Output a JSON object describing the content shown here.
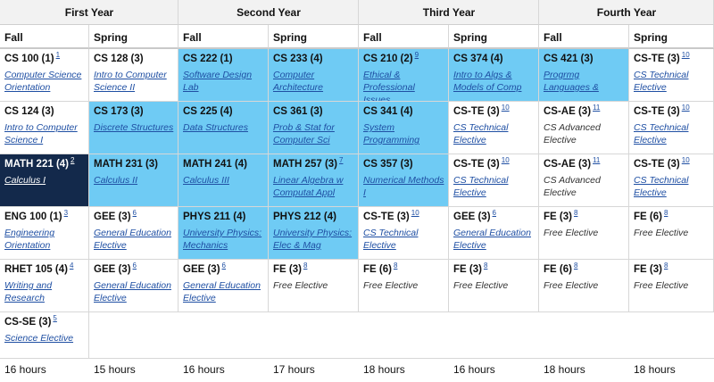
{
  "years": [
    "First Year",
    "Second Year",
    "Third Year",
    "Fourth Year"
  ],
  "terms": [
    "Fall",
    "Spring",
    "Fall",
    "Spring",
    "Fall",
    "Spring",
    "Fall",
    "Spring"
  ],
  "colors": {
    "highlight": "#6fcbf4",
    "selected": "#13294b",
    "link": "#1f4fa3"
  },
  "rows": [
    [
      {
        "code": "CS 100 (1)",
        "fn": "1",
        "title": "Computer Science Orientation",
        "link": true,
        "style": ""
      },
      {
        "code": "CS 128 (3)",
        "fn": "",
        "title": "Intro to Computer Science II",
        "link": true,
        "style": ""
      },
      {
        "code": "CS 222 (1)",
        "fn": "",
        "title": "Software Design Lab",
        "link": true,
        "style": "blue"
      },
      {
        "code": "CS 233 (4)",
        "fn": "",
        "title": "Computer Architecture",
        "link": true,
        "style": "blue"
      },
      {
        "code": "CS 210 (2)",
        "fn": "9",
        "title": "Ethical & Professional Issues",
        "link": true,
        "style": "blue"
      },
      {
        "code": "CS 374 (4)",
        "fn": "",
        "title": "Intro to Algs & Models of Comp",
        "link": true,
        "style": "blue"
      },
      {
        "code": "CS 421 (3)",
        "fn": "",
        "title": "Progrmg Languages &",
        "link": true,
        "style": "blue"
      },
      {
        "code": "CS-TE (3)",
        "fn": "10",
        "title": "CS Technical Elective",
        "link": true,
        "style": ""
      }
    ],
    [
      {
        "code": "CS 124 (3)",
        "fn": "",
        "title": "Intro to Computer Science I",
        "link": true,
        "style": ""
      },
      {
        "code": "CS 173 (3)",
        "fn": "",
        "title": "Discrete Structures",
        "link": true,
        "style": "blue"
      },
      {
        "code": "CS 225 (4)",
        "fn": "",
        "title": "Data Structures",
        "link": true,
        "style": "blue"
      },
      {
        "code": "CS 361 (3)",
        "fn": "",
        "title": "Prob & Stat for Computer Sci",
        "link": true,
        "style": "blue"
      },
      {
        "code": "CS 341 (4)",
        "fn": "",
        "title": "System Programming",
        "link": true,
        "style": "blue"
      },
      {
        "code": "CS-TE (3)",
        "fn": "10",
        "title": "CS Technical Elective",
        "link": true,
        "style": ""
      },
      {
        "code": "CS-AE (3)",
        "fn": "11",
        "title": "CS Advanced Elective",
        "link": false,
        "style": ""
      },
      {
        "code": "CS-TE (3)",
        "fn": "10",
        "title": "CS Technical Elective",
        "link": true,
        "style": ""
      }
    ],
    [
      {
        "code": "MATH 221 (4)",
        "fn": "2",
        "title": "Calculus I",
        "link": true,
        "style": "dark"
      },
      {
        "code": "MATH 231 (3)",
        "fn": "",
        "title": "Calculus II",
        "link": true,
        "style": "blue"
      },
      {
        "code": "MATH 241 (4)",
        "fn": "",
        "title": "Calculus III",
        "link": true,
        "style": "blue"
      },
      {
        "code": "MATH 257 (3)",
        "fn": "7",
        "title": "Linear Algebra w Computat Appl",
        "link": true,
        "style": "blue"
      },
      {
        "code": "CS 357 (3)",
        "fn": "",
        "title": "Numerical Methods I",
        "link": true,
        "style": "blue"
      },
      {
        "code": "CS-TE (3)",
        "fn": "10",
        "title": "CS Technical Elective",
        "link": true,
        "style": ""
      },
      {
        "code": "CS-AE (3)",
        "fn": "11",
        "title": "CS Advanced Elective",
        "link": false,
        "style": ""
      },
      {
        "code": "CS-TE (3)",
        "fn": "10",
        "title": "CS Technical Elective",
        "link": true,
        "style": ""
      }
    ],
    [
      {
        "code": "ENG 100 (1)",
        "fn": "3",
        "title": "Engineering Orientation",
        "link": true,
        "style": ""
      },
      {
        "code": "GEE (3)",
        "fn": "6",
        "title": "General Education Elective",
        "link": true,
        "style": ""
      },
      {
        "code": "PHYS 211 (4)",
        "fn": "",
        "title": "University Physics: Mechanics",
        "link": true,
        "style": "blue"
      },
      {
        "code": "PHYS 212 (4)",
        "fn": "",
        "title": "University Physics: Elec & Mag",
        "link": true,
        "style": "blue"
      },
      {
        "code": "CS-TE (3)",
        "fn": "10",
        "title": "CS Technical Elective",
        "link": true,
        "style": ""
      },
      {
        "code": "GEE (3)",
        "fn": "6",
        "title": "General Education Elective",
        "link": true,
        "style": ""
      },
      {
        "code": "FE (3)",
        "fn": "8",
        "title": "Free Elective",
        "link": false,
        "style": ""
      },
      {
        "code": "FE (6)",
        "fn": "8",
        "title": "Free Elective",
        "link": false,
        "style": ""
      }
    ],
    [
      {
        "code": "RHET 105 (4)",
        "fn": "4",
        "title": "Writing and Research",
        "link": true,
        "style": ""
      },
      {
        "code": "GEE (3)",
        "fn": "6",
        "title": "General Education Elective",
        "link": true,
        "style": ""
      },
      {
        "code": "GEE (3)",
        "fn": "6",
        "title": "General Education Elective",
        "link": true,
        "style": ""
      },
      {
        "code": "FE (3)",
        "fn": "8",
        "title": "Free Elective",
        "link": false,
        "style": ""
      },
      {
        "code": "FE (6)",
        "fn": "8",
        "title": "Free Elective",
        "link": false,
        "style": ""
      },
      {
        "code": "FE (3)",
        "fn": "8",
        "title": "Free Elective",
        "link": false,
        "style": ""
      },
      {
        "code": "FE (6)",
        "fn": "8",
        "title": "Free Elective",
        "link": false,
        "style": ""
      },
      {
        "code": "FE (3)",
        "fn": "8",
        "title": "Free Elective",
        "link": false,
        "style": ""
      }
    ],
    [
      {
        "code": "CS-SE (3)",
        "fn": "5",
        "title": "Science Elective",
        "link": true,
        "style": ""
      },
      null,
      null,
      null,
      null,
      null,
      null,
      null
    ]
  ],
  "hours": [
    "16 hours",
    "15 hours",
    "16 hours",
    "17 hours",
    "18 hours",
    "16 hours",
    "18 hours",
    "18 hours"
  ]
}
